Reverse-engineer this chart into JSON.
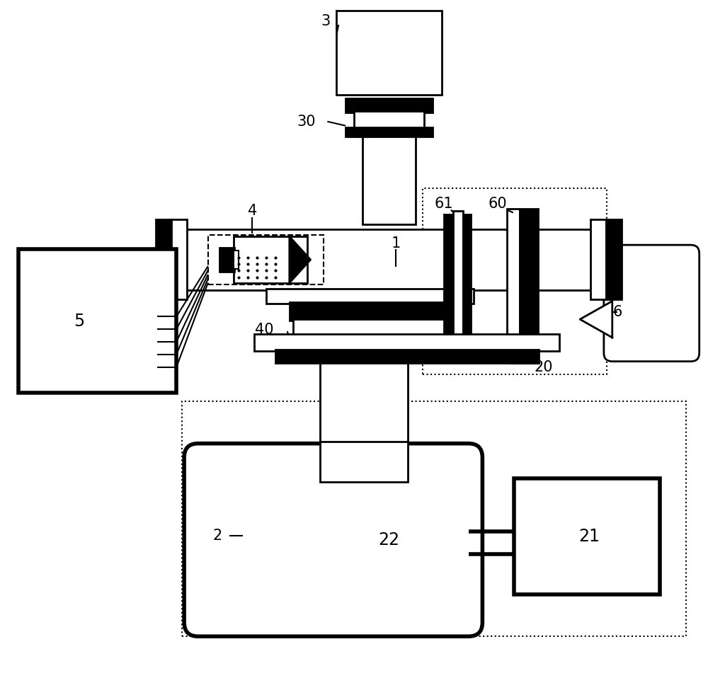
{
  "bg_color": "#ffffff",
  "lc": "#000000",
  "lw": 2.0,
  "lw_t": 4.0,
  "lw_th": 1.5,
  "label_fs": 15
}
